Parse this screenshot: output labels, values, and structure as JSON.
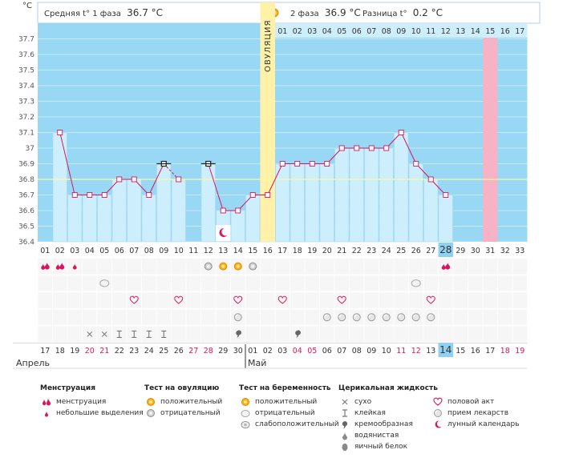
{
  "header": {
    "phase1_label": "Средняя t° 1 фаза",
    "phase1_value": "36.7 °C",
    "phase2_label": "2 фаза",
    "phase2_value": "36.9 °C",
    "diff_label": "Разница t°",
    "diff_value": "0.2 °C",
    "unit": "°C",
    "ovulation_label": "ОВУЛЯЦИЯ"
  },
  "chart_data": {
    "type": "line",
    "title": "",
    "ylabel": "°C",
    "ylim": [
      36.4,
      37.8
    ],
    "yticks": [
      "36.4",
      "36.5",
      "36.6",
      "36.7",
      "36.8",
      "36.9",
      "37",
      "37.1",
      "37.2",
      "37.3",
      "37.4",
      "37.5",
      "37.6",
      "37.7"
    ],
    "cycle_days": [
      "01",
      "02",
      "03",
      "04",
      "05",
      "06",
      "07",
      "08",
      "09",
      "10",
      "11",
      "12",
      "13",
      "14",
      "15",
      "16",
      "17",
      "18",
      "19",
      "20",
      "21",
      "22",
      "23",
      "24",
      "25",
      "26",
      "27",
      "28",
      "29",
      "30",
      "31",
      "32",
      "33"
    ],
    "phase2_days": [
      "01",
      "02",
      "03",
      "04",
      "05",
      "06",
      "07",
      "08",
      "09",
      "10",
      "11",
      "12",
      "13",
      "14",
      "15",
      "16",
      "17"
    ],
    "temperatures": [
      null,
      37.1,
      36.7,
      36.7,
      36.7,
      36.8,
      36.8,
      36.7,
      36.9,
      36.8,
      null,
      36.9,
      36.6,
      36.6,
      36.7,
      36.7,
      36.9,
      36.9,
      36.9,
      36.9,
      37.0,
      37.0,
      37.0,
      37.0,
      37.1,
      36.9,
      36.8,
      36.7,
      null,
      null,
      null,
      null,
      null
    ],
    "open_markers": [
      9,
      12
    ],
    "dashed_segments": [
      [
        9,
        10
      ]
    ],
    "ovulation_day": 16,
    "coverline": 36.8,
    "today_day": 28,
    "expected_period_day": 31,
    "calendar_dates": [
      "17",
      "18",
      "19",
      "20",
      "21",
      "22",
      "23",
      "24",
      "25",
      "26",
      "27",
      "28",
      "29",
      "30",
      "01",
      "02",
      "03",
      "04",
      "05",
      "06",
      "07",
      "08",
      "09",
      "10",
      "11",
      "12",
      "13",
      "14",
      "15",
      "16",
      "17",
      "18",
      "19"
    ],
    "weekend_days": [
      4,
      5,
      11,
      12,
      18,
      19,
      25,
      26,
      32,
      33
    ],
    "months": [
      "Апрель",
      "Май"
    ],
    "month_start_day": 15,
    "moon_day": 13,
    "rows": {
      "menstruation": [
        {
          "day": 1,
          "type": "heavy"
        },
        {
          "day": 2,
          "type": "heavy"
        },
        {
          "day": 3,
          "type": "light"
        },
        {
          "day": 28,
          "type": "heavy"
        }
      ],
      "ovulation_test": [
        {
          "day": 12,
          "type": "negative"
        },
        {
          "day": 13,
          "type": "positive"
        },
        {
          "day": 14,
          "type": "positive"
        },
        {
          "day": 15,
          "type": "negative"
        }
      ],
      "pregnancy_test": [
        {
          "day": 5,
          "type": "negative"
        },
        {
          "day": 26,
          "type": "negative"
        }
      ],
      "intercourse": [
        7,
        10,
        14,
        17,
        21,
        27
      ],
      "pills": [
        14,
        20,
        21,
        22,
        23,
        24,
        25,
        26,
        27
      ],
      "fluid": [
        {
          "day": 4,
          "type": "dry"
        },
        {
          "day": 5,
          "type": "dry"
        },
        {
          "day": 6,
          "type": "sticky"
        },
        {
          "day": 7,
          "type": "sticky"
        },
        {
          "day": 8,
          "type": "sticky"
        },
        {
          "day": 9,
          "type": "sticky"
        },
        {
          "day": 14,
          "type": "creamy"
        },
        {
          "day": 18,
          "type": "creamy"
        }
      ]
    }
  },
  "legend": {
    "menstruation": {
      "title": "Менструация",
      "items": [
        "менструация",
        "небольшие выделения"
      ]
    },
    "ovulation_test": {
      "title": "Тест на овуляцию",
      "items": [
        "положительный",
        "отрицательный"
      ]
    },
    "pregnancy_test": {
      "title": "Тест на беременность",
      "items": [
        "положительный",
        "отрицательный",
        "слабоположительный"
      ]
    },
    "fluid": {
      "title": "Церикальная жидкость",
      "items": [
        "сухо",
        "клейкая",
        "кремообразная",
        "водянистая",
        "яичный белок"
      ]
    },
    "other": {
      "items": [
        "половой акт",
        "прием лекарств",
        "лунный календарь"
      ]
    }
  },
  "colors": {
    "sky": "#99d8f5",
    "bar": "#cdeefc",
    "bar_edge": "#a5d9f2",
    "line": "#d8165f",
    "ovulation": "#fff2a8",
    "period": "#f7b3c6",
    "today": "#8fd1ef",
    "weekend": "#d8165f"
  }
}
